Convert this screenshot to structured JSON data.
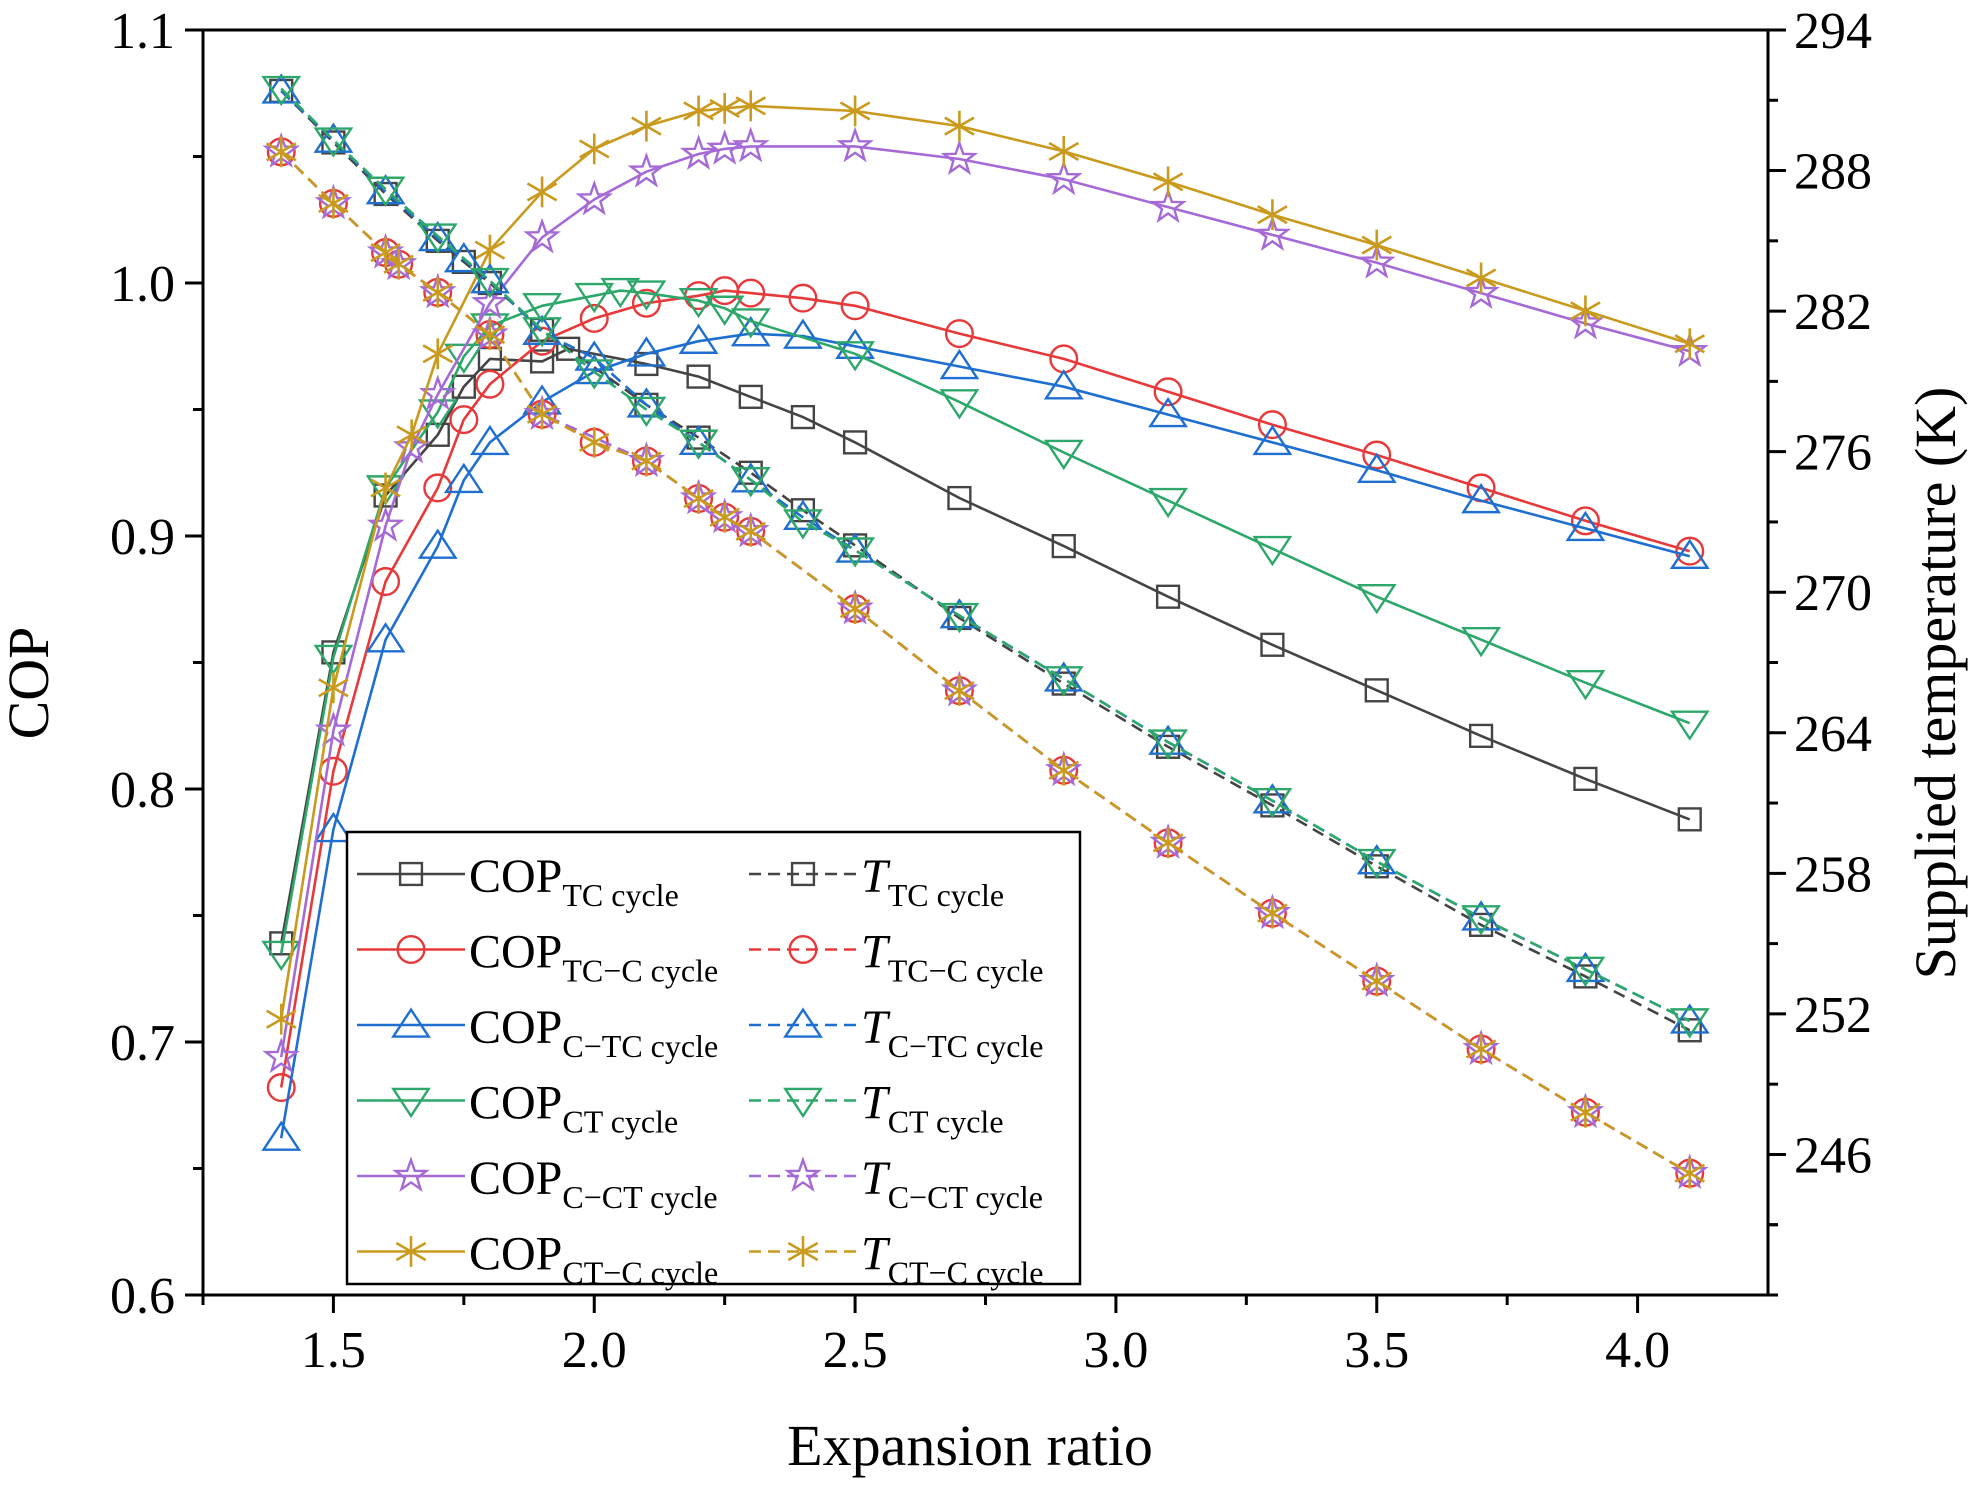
{
  "chart_data": {
    "type": "line",
    "xlabel": "Expansion ratio",
    "ylabel_left": "COP",
    "ylabel_right": "Supplied temperature (K)",
    "xlim": [
      1.25,
      4.25
    ],
    "ylim_left": [
      0.6,
      1.1
    ],
    "ylim_right": [
      240,
      294
    ],
    "x_ticks": [
      "1.5",
      "2.0",
      "2.5",
      "3.0",
      "3.5",
      "4.0"
    ],
    "y_left_ticks": [
      "0.6",
      "0.7",
      "0.8",
      "0.9",
      "1.0",
      "1.1"
    ],
    "y_right_ticks": [
      "246",
      "252",
      "258",
      "264",
      "270",
      "276",
      "282",
      "288",
      "294"
    ],
    "legend_position": "lower-left",
    "legend": [
      {
        "label_main": "COP",
        "label_sub": "TC cycle",
        "italic": false
      },
      {
        "label_main": "T",
        "label_sub": "TC cycle",
        "italic": true
      },
      {
        "label_main": "COP",
        "label_sub": "TC−C cycle",
        "italic": false
      },
      {
        "label_main": "T",
        "label_sub": "TC−C cycle",
        "italic": true
      },
      {
        "label_main": "COP",
        "label_sub": "C−TC cycle",
        "italic": false
      },
      {
        "label_main": "T",
        "label_sub": "C−TC cycle",
        "italic": true
      },
      {
        "label_main": "COP",
        "label_sub": "CT cycle",
        "italic": false
      },
      {
        "label_main": "T",
        "label_sub": "CT cycle",
        "italic": true
      },
      {
        "label_main": "COP",
        "label_sub": "C−CT cycle",
        "italic": false
      },
      {
        "label_main": "T",
        "label_sub": "C−CT cycle",
        "italic": true
      },
      {
        "label_main": "COP",
        "label_sub": "CT−C cycle",
        "italic": false
      },
      {
        "label_main": "T",
        "label_sub": "CT−C cycle",
        "italic": true
      }
    ],
    "series": [
      {
        "name": "COP TC cycle",
        "axis": "left",
        "dash": false,
        "color": "#444444",
        "marker": "square",
        "x": [
          1.4,
          1.5,
          1.6,
          1.7,
          1.75,
          1.8,
          1.9,
          1.95,
          2.1,
          2.2,
          2.3,
          2.4,
          2.5,
          2.7,
          2.9,
          3.1,
          3.3,
          3.5,
          3.7,
          3.9,
          4.1
        ],
        "y": [
          0.739,
          0.854,
          0.916,
          0.94,
          0.959,
          0.97,
          0.969,
          0.974,
          0.968,
          0.963,
          0.955,
          0.947,
          0.937,
          0.915,
          0.896,
          0.876,
          0.857,
          0.839,
          0.821,
          0.804,
          0.788
        ]
      },
      {
        "name": "COP TC-C cycle",
        "axis": "left",
        "dash": false,
        "color": "#e8393a",
        "marker": "circle",
        "x": [
          1.4,
          1.5,
          1.6,
          1.7,
          1.75,
          1.8,
          1.9,
          2.0,
          2.1,
          2.2,
          2.25,
          2.3,
          2.4,
          2.5,
          2.7,
          2.9,
          3.1,
          3.3,
          3.5,
          3.7,
          3.9,
          4.1
        ],
        "y": [
          0.682,
          0.807,
          0.882,
          0.919,
          0.946,
          0.96,
          0.977,
          0.986,
          0.992,
          0.995,
          0.997,
          0.996,
          0.994,
          0.991,
          0.98,
          0.97,
          0.957,
          0.944,
          0.932,
          0.919,
          0.906,
          0.894
        ]
      },
      {
        "name": "COP C-TC cycle",
        "axis": "left",
        "dash": false,
        "color": "#1f6fd0",
        "marker": "triangle-up",
        "x": [
          1.4,
          1.5,
          1.6,
          1.7,
          1.75,
          1.8,
          1.9,
          2.0,
          2.1,
          2.2,
          2.3,
          2.4,
          2.5,
          2.7,
          2.9,
          3.1,
          3.3,
          3.5,
          3.7,
          3.9,
          4.1
        ],
        "y": [
          0.662,
          0.784,
          0.859,
          0.896,
          0.922,
          0.937,
          0.953,
          0.965,
          0.972,
          0.977,
          0.98,
          0.979,
          0.975,
          0.967,
          0.959,
          0.948,
          0.937,
          0.926,
          0.914,
          0.903,
          0.892
        ]
      },
      {
        "name": "COP CT cycle",
        "axis": "left",
        "dash": false,
        "color": "#2ea86a",
        "marker": "triangle-down",
        "x": [
          1.4,
          1.5,
          1.6,
          1.7,
          1.75,
          1.8,
          1.9,
          2.0,
          2.05,
          2.1,
          2.2,
          2.25,
          2.3,
          2.5,
          2.7,
          2.9,
          3.1,
          3.3,
          3.5,
          3.7,
          3.9,
          4.1
        ],
        "y": [
          0.735,
          0.852,
          0.919,
          0.949,
          0.971,
          0.983,
          0.991,
          0.995,
          0.997,
          0.996,
          0.993,
          0.99,
          0.985,
          0.972,
          0.953,
          0.933,
          0.914,
          0.895,
          0.876,
          0.859,
          0.842,
          0.826
        ]
      },
      {
        "name": "COP C-CT cycle",
        "axis": "left",
        "dash": false,
        "color": "#a66ad6",
        "marker": "star",
        "x": [
          1.4,
          1.5,
          1.6,
          1.65,
          1.7,
          1.8,
          1.9,
          2.0,
          2.1,
          2.2,
          2.25,
          2.3,
          2.5,
          2.7,
          2.9,
          3.1,
          3.3,
          3.5,
          3.7,
          3.9,
          4.1
        ],
        "y": [
          0.694,
          0.823,
          0.904,
          0.935,
          0.956,
          0.992,
          1.018,
          1.033,
          1.044,
          1.051,
          1.053,
          1.054,
          1.054,
          1.049,
          1.041,
          1.03,
          1.019,
          1.008,
          0.996,
          0.984,
          0.973
        ]
      },
      {
        "name": "COP CT-C cycle",
        "axis": "left",
        "dash": false,
        "color": "#c99a1e",
        "marker": "asterisk",
        "x": [
          1.4,
          1.5,
          1.6,
          1.65,
          1.7,
          1.8,
          1.9,
          2.0,
          2.1,
          2.2,
          2.25,
          2.3,
          2.5,
          2.7,
          2.9,
          3.1,
          3.3,
          3.5,
          3.7,
          3.9,
          4.1
        ],
        "y": [
          0.709,
          0.84,
          0.919,
          0.94,
          0.972,
          1.013,
          1.036,
          1.053,
          1.062,
          1.068,
          1.069,
          1.07,
          1.068,
          1.062,
          1.052,
          1.04,
          1.027,
          1.015,
          1.002,
          0.989,
          0.976
        ]
      },
      {
        "name": "T TC cycle",
        "axis": "right",
        "dash": true,
        "color": "#444444",
        "marker": "square",
        "x": [
          1.4,
          1.5,
          1.6,
          1.7,
          1.75,
          1.8,
          1.9,
          2.1,
          2.2,
          2.3,
          2.4,
          2.5,
          2.7,
          2.9,
          3.1,
          3.3,
          3.5,
          3.7,
          3.9,
          4.1
        ],
        "y": [
          291.4,
          289.2,
          287.0,
          285.0,
          284.1,
          283.2,
          281.2,
          278.0,
          276.6,
          275.1,
          273.5,
          272.0,
          268.9,
          266.1,
          263.4,
          260.9,
          258.3,
          255.8,
          253.6,
          251.3
        ]
      },
      {
        "name": "T TC-C cycle",
        "axis": "right",
        "dash": true,
        "color": "#e8393a",
        "marker": "circle",
        "x": [
          1.4,
          1.5,
          1.6,
          1.625,
          1.7,
          1.8,
          1.9,
          2.0,
          2.1,
          2.2,
          2.25,
          2.3,
          2.5,
          2.7,
          2.9,
          3.1,
          3.3,
          3.5,
          3.7,
          3.9,
          4.1
        ],
        "y": [
          288.8,
          286.6,
          284.5,
          284.0,
          282.8,
          281.0,
          277.6,
          276.4,
          275.6,
          274.0,
          273.2,
          272.6,
          269.3,
          265.8,
          262.4,
          259.3,
          256.3,
          253.4,
          250.5,
          247.8,
          245.2
        ]
      },
      {
        "name": "T C-TC cycle",
        "axis": "right",
        "dash": true,
        "color": "#1f6fd0",
        "marker": "triangle-up",
        "x": [
          1.4,
          1.5,
          1.6,
          1.7,
          1.75,
          1.8,
          1.9,
          2.0,
          2.1,
          2.2,
          2.3,
          2.4,
          2.5,
          2.7,
          2.9,
          3.1,
          3.3,
          3.5,
          3.7,
          3.9,
          4.1
        ],
        "y": [
          291.4,
          289.3,
          287.1,
          285.1,
          284.2,
          283.3,
          281.1,
          280.0,
          278.0,
          276.4,
          274.8,
          273.2,
          271.8,
          269.0,
          266.3,
          263.6,
          261.1,
          258.5,
          256.1,
          253.9,
          251.7
        ]
      },
      {
        "name": "T CT cycle",
        "axis": "right",
        "dash": true,
        "color": "#2ea86a",
        "marker": "triangle-down",
        "x": [
          1.4,
          1.5,
          1.6,
          1.7,
          1.8,
          1.9,
          2.0,
          2.1,
          2.2,
          2.3,
          2.4,
          2.5,
          2.7,
          2.9,
          3.1,
          3.3,
          3.5,
          3.7,
          3.9,
          4.1
        ],
        "y": [
          291.5,
          289.3,
          287.2,
          285.2,
          283.3,
          281.2,
          279.4,
          277.8,
          276.4,
          274.8,
          273.0,
          271.8,
          269.0,
          266.3,
          263.6,
          261.1,
          258.5,
          256.1,
          253.9,
          251.7
        ]
      },
      {
        "name": "T C-CT cycle",
        "axis": "right",
        "dash": true,
        "color": "#a66ad6",
        "marker": "star",
        "x": [
          1.4,
          1.5,
          1.6,
          1.625,
          1.7,
          1.8,
          1.9,
          2.1,
          2.2,
          2.25,
          2.3,
          2.5,
          2.7,
          2.9,
          3.1,
          3.3,
          3.5,
          3.7,
          3.9,
          4.1
        ],
        "y": [
          288.8,
          286.6,
          284.5,
          284.0,
          282.8,
          281.0,
          277.6,
          275.6,
          274.0,
          273.2,
          272.6,
          269.3,
          265.8,
          262.4,
          259.3,
          256.3,
          253.4,
          250.5,
          247.8,
          245.2
        ]
      },
      {
        "name": "T CT-C cycle",
        "axis": "right",
        "dash": true,
        "color": "#c99a1e",
        "marker": "asterisk",
        "x": [
          1.4,
          1.5,
          1.6,
          1.625,
          1.7,
          1.8,
          1.9,
          2.0,
          2.1,
          2.2,
          2.25,
          2.3,
          2.5,
          2.7,
          2.9,
          3.1,
          3.3,
          3.5,
          3.7,
          3.9,
          4.1
        ],
        "y": [
          288.8,
          286.6,
          284.5,
          284.0,
          282.8,
          281.0,
          277.6,
          276.4,
          275.6,
          274.0,
          273.2,
          272.6,
          269.3,
          265.8,
          262.4,
          259.3,
          256.3,
          253.4,
          250.5,
          247.8,
          245.2
        ]
      }
    ]
  }
}
